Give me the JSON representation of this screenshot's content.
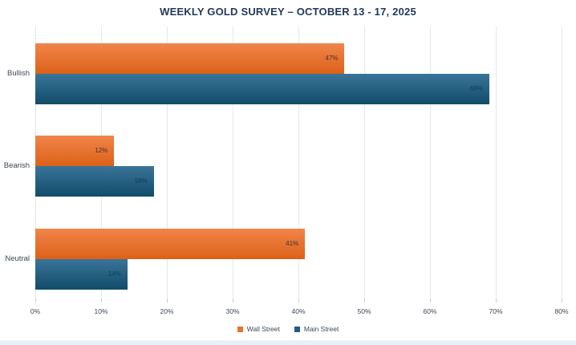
{
  "title": "WEEKLY GOLD SURVEY – OCTOBER 13 - 17, 2025",
  "colors": {
    "title": "#22395b",
    "gridline": "#e4e8ec",
    "axis_text": "#3d4856",
    "category_text": "#3b4754",
    "bottom_band": "#e9f0f6",
    "wall_street_accent": "#e9722c",
    "main_street_accent": "#1e5e80"
  },
  "chart_data": {
    "type": "bar",
    "orientation": "horizontal",
    "title": "WEEKLY GOLD SURVEY – OCTOBER 13 - 17, 2025",
    "categories": [
      "Bullish",
      "Bearish",
      "Neutral"
    ],
    "series": [
      {
        "name": "Wall Street",
        "values": [
          47,
          12,
          41
        ],
        "color": "#e9722c",
        "gradient": [
          "#f0854a",
          "#dc6118"
        ],
        "label_color": "#43332a",
        "data_labels": [
          "47%",
          "12%",
          "41%"
        ]
      },
      {
        "name": "Main Street",
        "values": [
          69,
          18,
          14
        ],
        "color": "#1e5e80",
        "gradient": [
          "#3a759a",
          "#124c69"
        ],
        "label_color": "#0f3a52",
        "data_labels": [
          "69%",
          "18%",
          "14%"
        ]
      }
    ],
    "xlabel": "",
    "ylabel": "",
    "xlim": [
      0,
      80
    ],
    "x_tick_step": 10,
    "x_tick_labels": [
      "0%",
      "10%",
      "20%",
      "30%",
      "40%",
      "50%",
      "60%",
      "70%",
      "80%"
    ],
    "grid": true,
    "legend_position": "bottom"
  }
}
